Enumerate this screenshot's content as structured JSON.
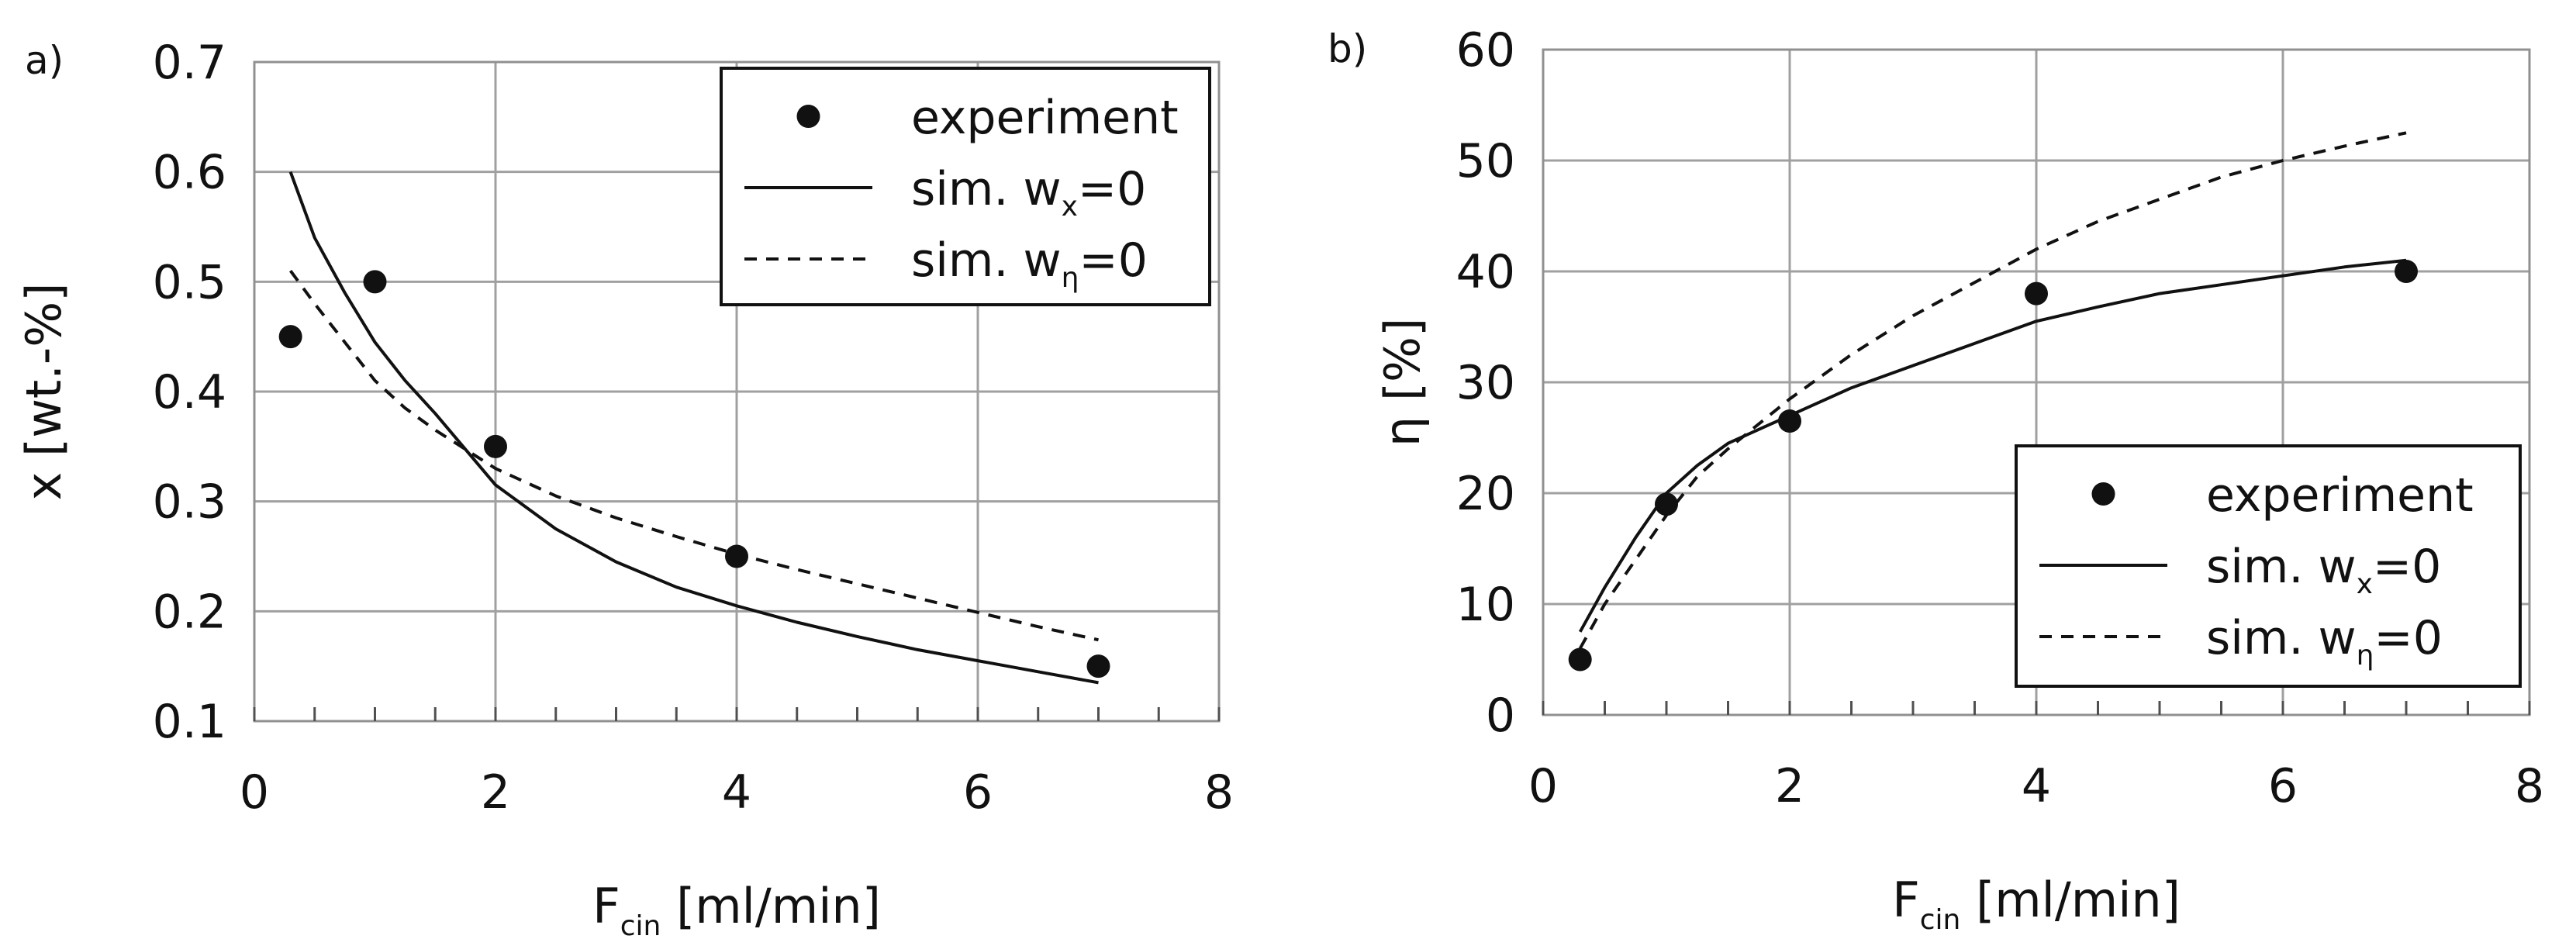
{
  "chart_data": [
    {
      "panel": "a)",
      "type": "scatter",
      "xlabel": "F",
      "xlabel_sub": "cin",
      "xlabel_unit": " [ml/min]",
      "ylabel": "x [wt.-%]",
      "xlim": [
        0,
        8
      ],
      "ylim": [
        0.1,
        0.7
      ],
      "xticks": [
        "0",
        "2",
        "4",
        "6",
        "8"
      ],
      "yticks": [
        "0.1",
        "0.2",
        "0.3",
        "0.4",
        "0.5",
        "0.6",
        "0.7"
      ],
      "grid": true,
      "legend_position": "top-right",
      "series": [
        {
          "name": "experiment",
          "style": "markers",
          "x": [
            0.3,
            1,
            2,
            4,
            7
          ],
          "y": [
            0.45,
            0.5,
            0.35,
            0.25,
            0.15
          ]
        },
        {
          "name": "sim. w",
          "sub": "x",
          "suffix": "=0",
          "style": "solid",
          "x": [
            0.3,
            0.5,
            0.75,
            1,
            1.25,
            1.5,
            2,
            2.5,
            3,
            3.5,
            4,
            4.5,
            5,
            5.5,
            6,
            6.5,
            7
          ],
          "y": [
            0.6,
            0.54,
            0.49,
            0.445,
            0.41,
            0.38,
            0.315,
            0.275,
            0.245,
            0.222,
            0.205,
            0.19,
            0.177,
            0.165,
            0.155,
            0.145,
            0.135
          ]
        },
        {
          "name": "sim. w",
          "sub": "η",
          "suffix": "=0",
          "style": "dashed",
          "x": [
            0.3,
            0.5,
            0.75,
            1,
            1.25,
            1.5,
            2,
            2.5,
            3,
            3.5,
            4,
            4.5,
            5,
            5.5,
            6,
            6.5,
            7
          ],
          "y": [
            0.51,
            0.48,
            0.445,
            0.41,
            0.385,
            0.365,
            0.33,
            0.305,
            0.285,
            0.268,
            0.252,
            0.238,
            0.225,
            0.212,
            0.199,
            0.186,
            0.174
          ]
        }
      ]
    },
    {
      "panel": "b)",
      "type": "scatter",
      "xlabel": "F",
      "xlabel_sub": "cin",
      "xlabel_unit": " [ml/min]",
      "ylabel": "η [%]",
      "xlim": [
        0,
        8
      ],
      "ylim": [
        0,
        60
      ],
      "xticks": [
        "0",
        "2",
        "4",
        "6",
        "8"
      ],
      "yticks": [
        "0",
        "10",
        "20",
        "30",
        "40",
        "50",
        "60"
      ],
      "grid": true,
      "legend_position": "bottom-right",
      "series": [
        {
          "name": "experiment",
          "style": "markers",
          "x": [
            0.3,
            1,
            2,
            4,
            7
          ],
          "y": [
            5,
            19,
            26.5,
            38,
            40
          ]
        },
        {
          "name": "sim. w",
          "sub": "x",
          "suffix": "=0",
          "style": "solid",
          "x": [
            0.3,
            0.5,
            0.75,
            1,
            1.25,
            1.5,
            2,
            2.5,
            3,
            3.5,
            4,
            4.5,
            5,
            5.5,
            6,
            6.5,
            7
          ],
          "y": [
            7.5,
            11.5,
            16,
            20,
            22.5,
            24.5,
            27,
            29.5,
            31.5,
            33.5,
            35.5,
            36.8,
            38,
            38.8,
            39.6,
            40.4,
            41
          ]
        },
        {
          "name": "sim. w",
          "sub": "η",
          "suffix": "=0",
          "style": "dashed",
          "x": [
            0.3,
            0.5,
            0.75,
            1,
            1.25,
            1.5,
            2,
            2.5,
            3,
            3.5,
            4,
            4.5,
            5,
            5.5,
            6,
            6.5,
            7
          ],
          "y": [
            6,
            10,
            14,
            18,
            21.5,
            24,
            28.5,
            32.5,
            36,
            39,
            42,
            44.5,
            46.5,
            48.5,
            50,
            51.3,
            52.5
          ]
        }
      ]
    }
  ]
}
